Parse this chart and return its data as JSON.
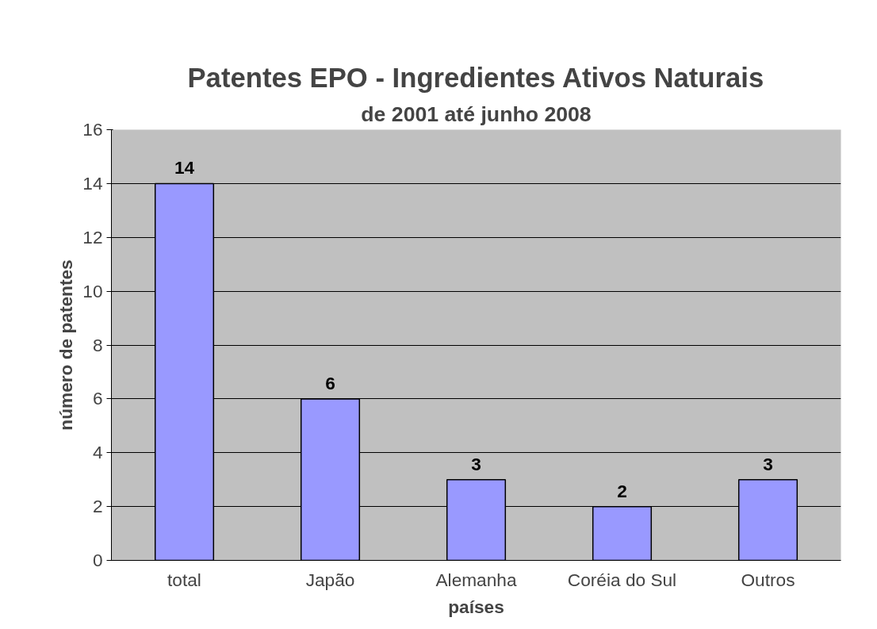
{
  "chart_data": {
    "type": "bar",
    "title": "Patentes EPO - Ingredientes Ativos Naturais",
    "subtitle": "de 2001 até junho 2008",
    "xlabel": "países",
    "ylabel": "número de patentes",
    "categories": [
      "total",
      "Japão",
      "Alemanha",
      "Coréia do Sul",
      "Outros"
    ],
    "values": [
      14,
      6,
      3,
      2,
      3
    ],
    "color": "#9999ff",
    "ylim": [
      0,
      16
    ],
    "yticks": [
      0,
      2,
      4,
      6,
      8,
      10,
      12,
      14,
      16
    ],
    "grid": "y",
    "data_labels": true
  }
}
